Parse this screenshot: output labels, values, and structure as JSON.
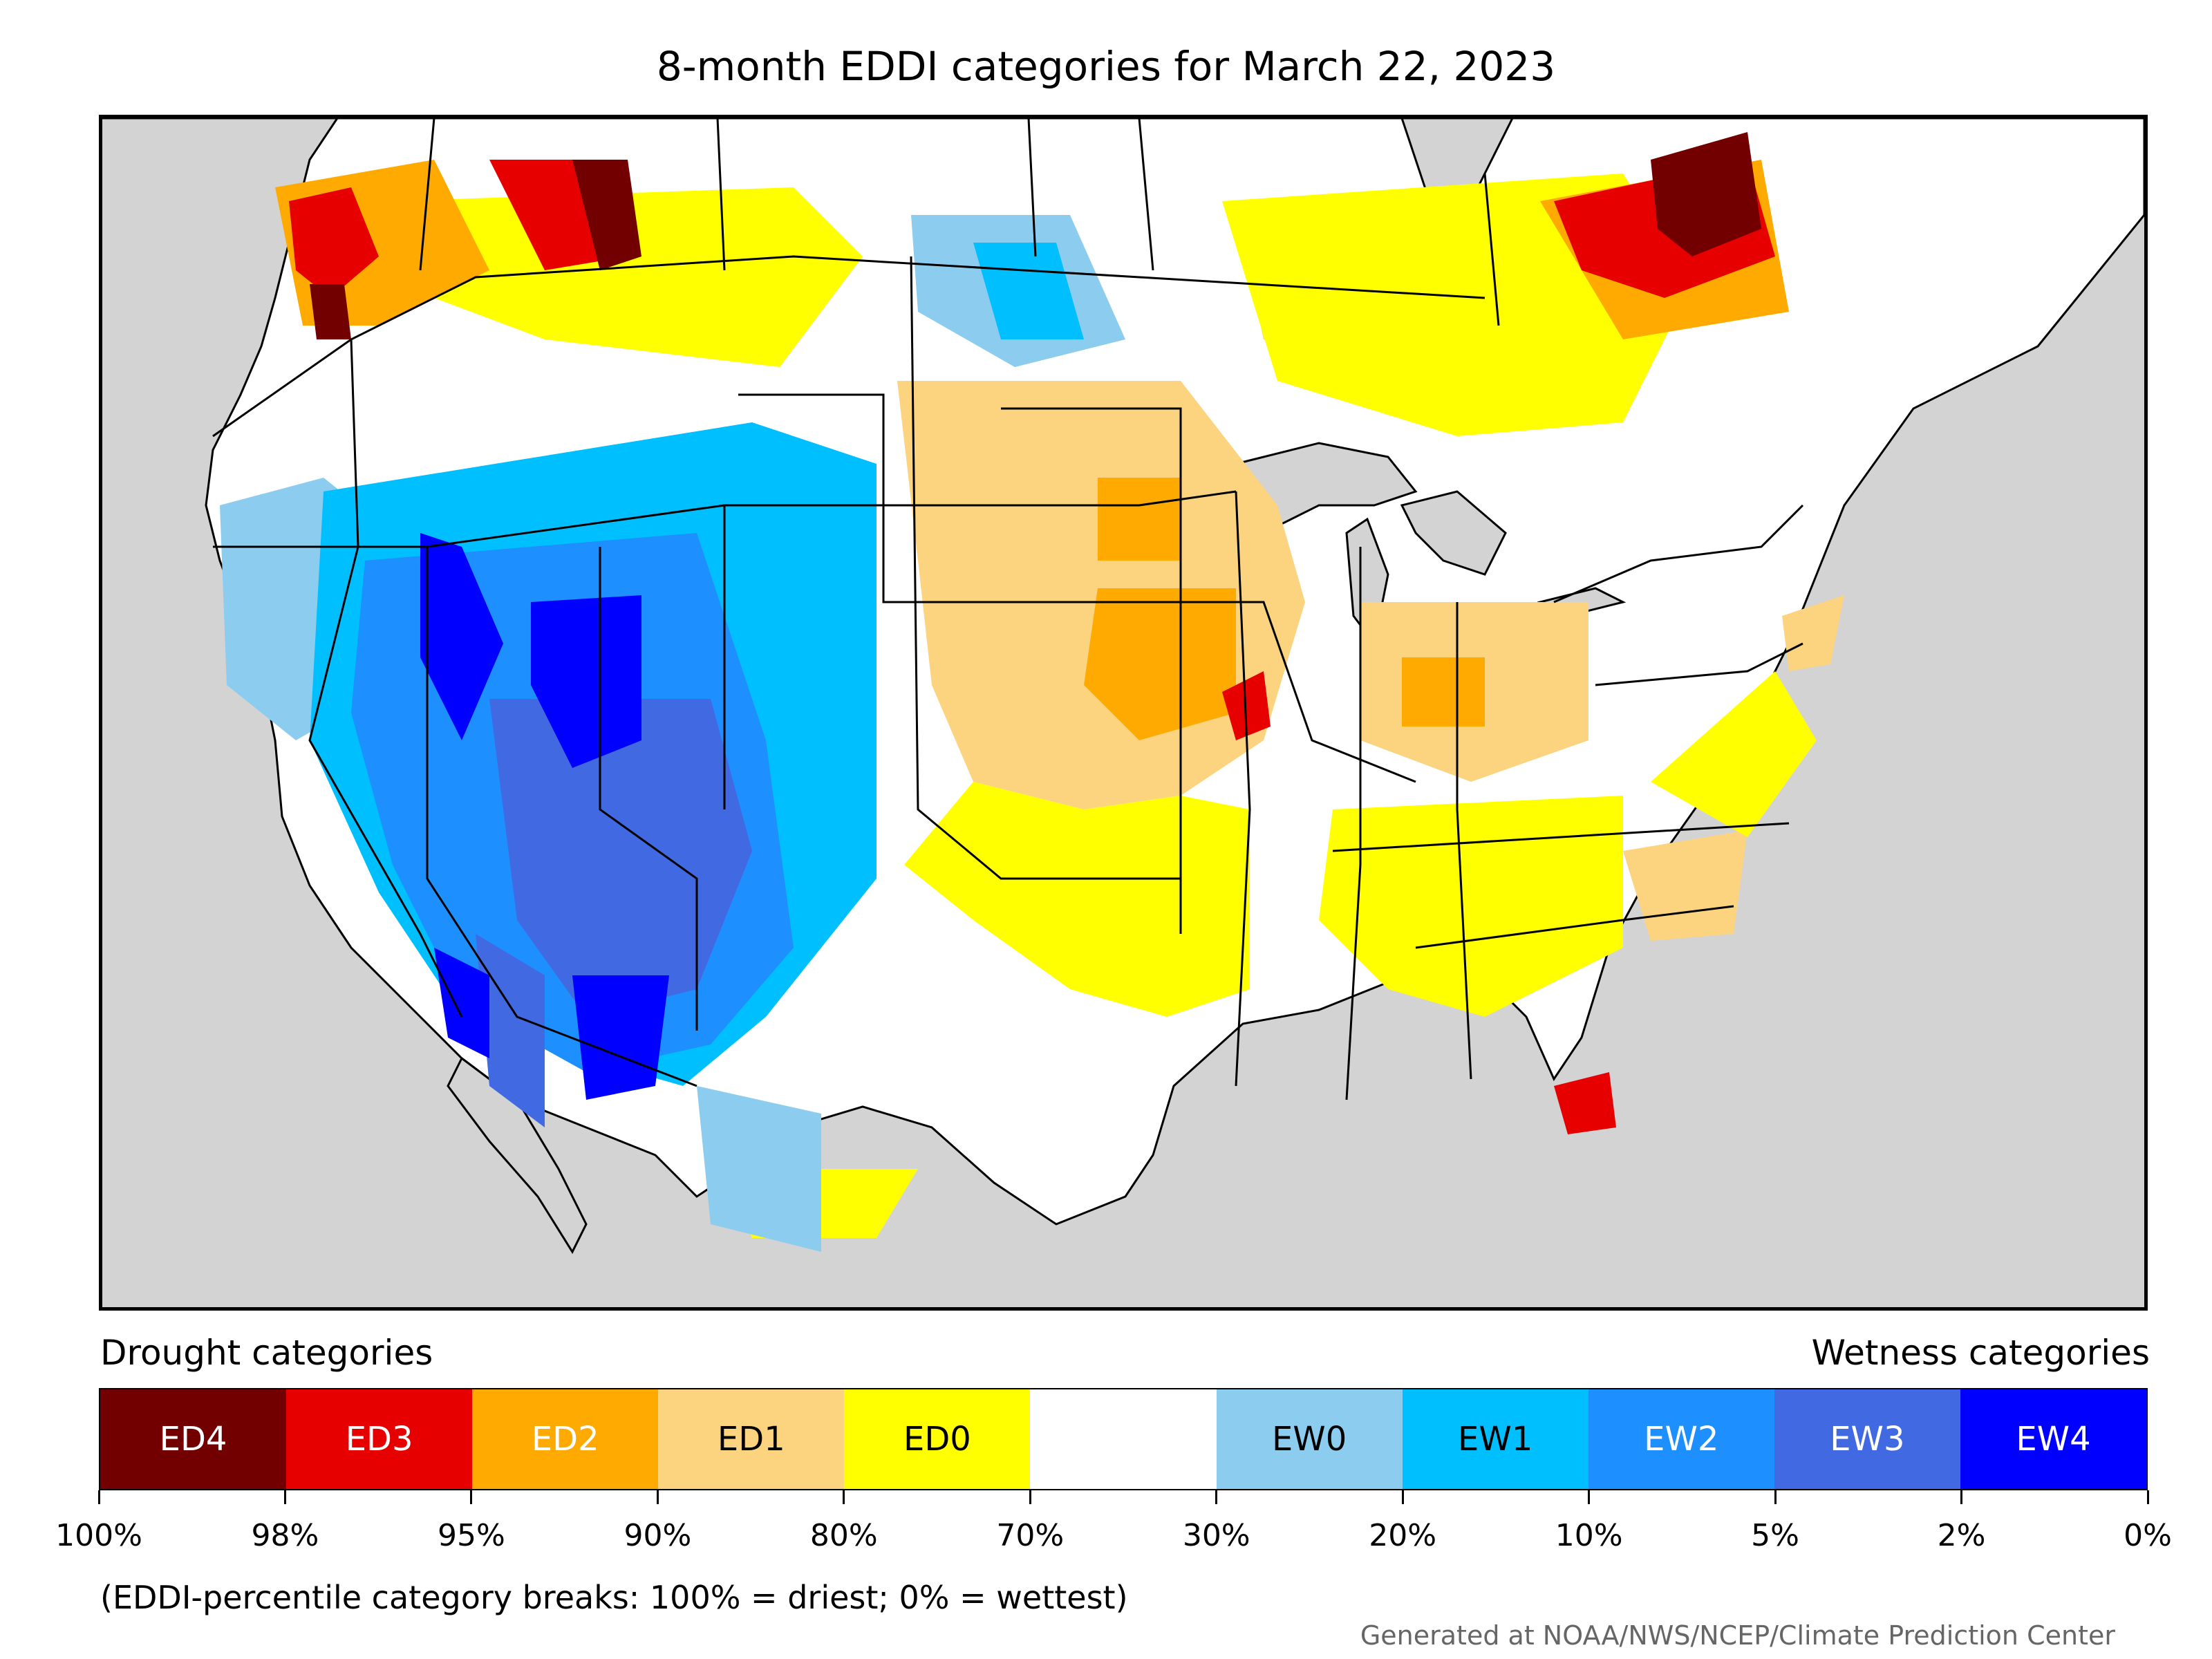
{
  "title": "8-month EDDI categories for March 22, 2023",
  "legend": {
    "drought_heading": "Drought categories",
    "wetness_heading": "Wetness categories",
    "categories": [
      {
        "label": "ED4",
        "color": "#730000",
        "text_color": "#ffffff"
      },
      {
        "label": "ED3",
        "color": "#e60000",
        "text_color": "#ffffff"
      },
      {
        "label": "ED2",
        "color": "#ffaa00",
        "text_color": "#ffffff"
      },
      {
        "label": "ED1",
        "color": "#fcd37f",
        "text_color": "#000000"
      },
      {
        "label": "ED0",
        "color": "#ffff00",
        "text_color": "#000000"
      },
      {
        "label": "",
        "color": "#ffffff",
        "text_color": "#000000"
      },
      {
        "label": "EW0",
        "color": "#8ccdef",
        "text_color": "#000000"
      },
      {
        "label": "EW1",
        "color": "#00bfff",
        "text_color": "#000000"
      },
      {
        "label": "EW2",
        "color": "#1d8fff",
        "text_color": "#ffffff"
      },
      {
        "label": "EW3",
        "color": "#4169e1",
        "text_color": "#ffffff"
      },
      {
        "label": "EW4",
        "color": "#0000ff",
        "text_color": "#ffffff"
      }
    ],
    "tick_labels": [
      "100%",
      "98%",
      "95%",
      "90%",
      "80%",
      "70%",
      "30%",
      "20%",
      "10%",
      "5%",
      "2%",
      "0%"
    ]
  },
  "note": "(EDDI-percentile category breaks: 100% = driest; 0% = wettest)",
  "credit": "Generated at NOAA/NWS/NCEP/Climate Prediction Center",
  "map": {
    "background_color": "#d3d3d3",
    "land_color": "#ffffff",
    "border_color": "#000000"
  }
}
